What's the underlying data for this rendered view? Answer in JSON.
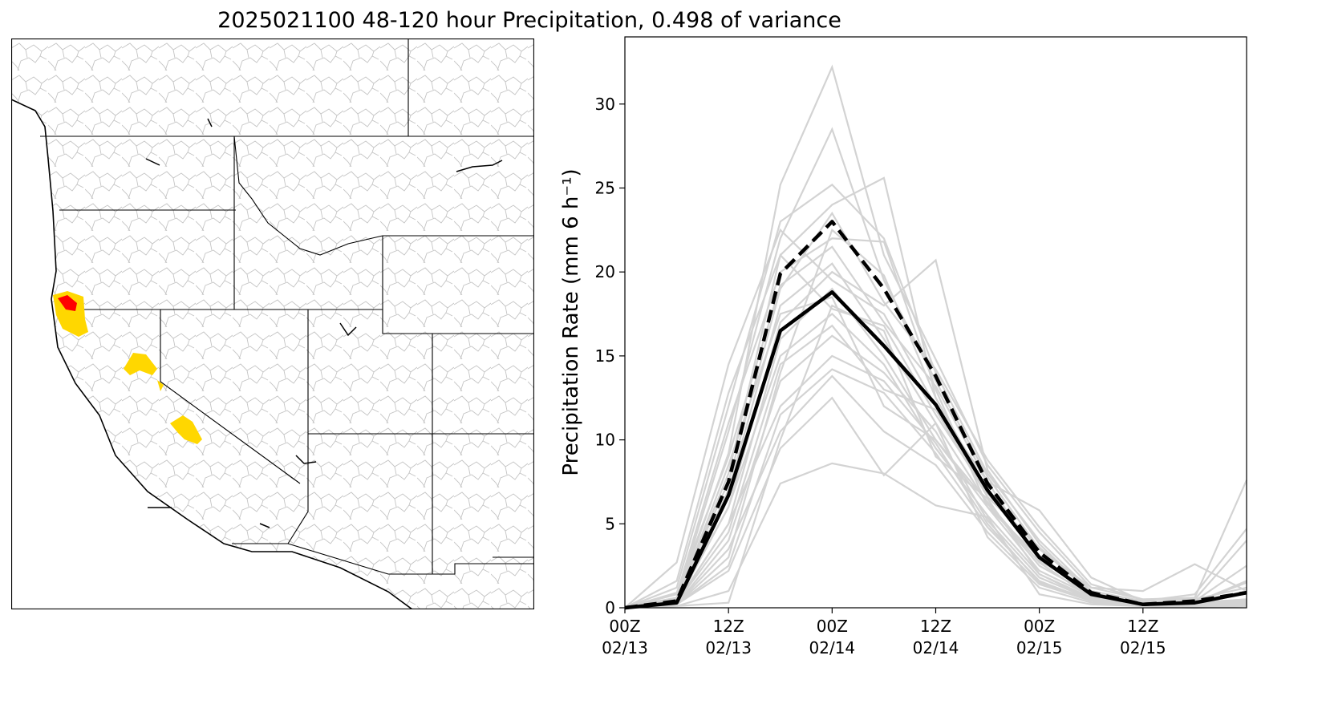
{
  "title": "2025021100 48-120 hour Precipitation, 0.498 of variance",
  "colors": {
    "basin_outline": "#bdbdbd",
    "state_line": "#000000",
    "highlight_high": "#ff0000",
    "highlight_mid": "#ffd700",
    "member": "#d3d3d3",
    "mean": "#000000"
  },
  "chart_data": {
    "type": "line",
    "title": "",
    "xlabel": "",
    "ylabel": "Precipitation Rate (mm 6 h⁻¹)",
    "ylim": [
      0,
      34
    ],
    "yticks": [
      0,
      5,
      10,
      15,
      20,
      25,
      30
    ],
    "x": [
      "02/13 00Z",
      "02/13 06Z",
      "02/13 12Z",
      "02/13 18Z",
      "02/14 00Z",
      "02/14 06Z",
      "02/14 12Z",
      "02/14 18Z",
      "02/15 00Z",
      "02/15 06Z",
      "02/15 12Z",
      "02/15 18Z",
      "02/16 00Z"
    ],
    "xticks": [
      {
        "line1": "00Z",
        "line2": "02/13"
      },
      {
        "line1": "12Z",
        "line2": "02/13"
      },
      {
        "line1": "00Z",
        "line2": "02/14"
      },
      {
        "line1": "12Z",
        "line2": "02/14"
      },
      {
        "line1": "00Z",
        "line2": "02/15"
      },
      {
        "line1": "12Z",
        "line2": "02/15"
      }
    ],
    "series": [
      {
        "style": "solid-bold",
        "values": [
          0.0,
          0.3,
          6.7,
          16.5,
          18.8,
          15.6,
          12.1,
          7.0,
          3.0,
          0.8,
          0.2,
          0.3,
          0.9
        ]
      },
      {
        "style": "dashed-bold",
        "values": [
          0.0,
          0.4,
          7.5,
          19.9,
          23.0,
          19.0,
          13.8,
          7.4,
          3.3,
          0.9,
          0.2,
          0.4,
          0.9
        ]
      },
      {
        "style": "member",
        "values": [
          0.0,
          0.5,
          9.2,
          25.2,
          32.2,
          21.0,
          14.8,
          8.5,
          4.5,
          1.2,
          0.5,
          0.6,
          7.6
        ]
      },
      {
        "style": "member",
        "values": [
          0.0,
          0.6,
          10.5,
          22.0,
          28.5,
          19.5,
          13.5,
          7.8,
          3.5,
          1.0,
          0.4,
          0.8,
          4.7
        ]
      },
      {
        "style": "member",
        "values": [
          0.0,
          1.2,
          12.0,
          23.0,
          25.2,
          22.0,
          14.0,
          8.0,
          4.0,
          1.0,
          0.3,
          0.5,
          4.0
        ]
      },
      {
        "style": "member",
        "values": [
          0.0,
          0.4,
          8.0,
          21.0,
          24.0,
          25.6,
          12.5,
          7.0,
          3.0,
          0.9,
          0.3,
          0.4,
          2.5
        ]
      },
      {
        "style": "member",
        "values": [
          0.0,
          0.8,
          11.0,
          20.0,
          22.0,
          21.8,
          13.0,
          6.0,
          3.0,
          0.7,
          0.2,
          0.3,
          1.6
        ]
      },
      {
        "style": "member",
        "values": [
          0.0,
          0.3,
          6.0,
          17.0,
          20.0,
          18.0,
          20.7,
          8.2,
          3.8,
          0.8,
          0.3,
          0.3,
          1.5
        ]
      },
      {
        "style": "member",
        "values": [
          0.0,
          2.7,
          14.5,
          22.5,
          19.5,
          17.5,
          12.0,
          7.5,
          5.8,
          1.8,
          0.4,
          0.3,
          1.0
        ]
      },
      {
        "style": "member",
        "values": [
          0.0,
          1.6,
          12.8,
          21.0,
          17.8,
          16.8,
          11.5,
          6.8,
          3.5,
          1.2,
          1.0,
          2.6,
          1.0
        ]
      },
      {
        "style": "member",
        "values": [
          0.0,
          0.9,
          9.0,
          19.2,
          21.5,
          17.0,
          13.2,
          7.5,
          2.8,
          1.0,
          0.3,
          0.3,
          0.5
        ]
      },
      {
        "style": "member",
        "values": [
          0.0,
          0.5,
          7.0,
          18.0,
          20.5,
          16.0,
          11.0,
          6.2,
          2.5,
          0.8,
          0.2,
          0.2,
          0.5
        ]
      },
      {
        "style": "member",
        "values": [
          0.0,
          0.3,
          5.0,
          16.0,
          19.0,
          15.0,
          10.0,
          6.0,
          2.2,
          0.7,
          0.1,
          0.2,
          0.4
        ]
      },
      {
        "style": "member",
        "values": [
          0.0,
          0.4,
          6.0,
          15.0,
          17.5,
          14.5,
          9.5,
          5.5,
          2.0,
          0.6,
          0.2,
          0.2,
          0.3
        ]
      },
      {
        "style": "member",
        "values": [
          0.0,
          0.2,
          4.0,
          13.5,
          16.2,
          14.0,
          10.5,
          5.2,
          1.8,
          0.5,
          0.2,
          0.1,
          0.3
        ]
      },
      {
        "style": "member",
        "values": [
          0.0,
          0.3,
          5.0,
          12.0,
          15.0,
          13.5,
          9.8,
          5.0,
          1.5,
          0.5,
          0.1,
          0.1,
          0.2
        ]
      },
      {
        "style": "member",
        "values": [
          0.0,
          0.2,
          3.5,
          10.5,
          13.8,
          10.5,
          8.5,
          4.5,
          1.4,
          0.4,
          0.1,
          0.1,
          0.2
        ]
      },
      {
        "style": "member",
        "values": [
          0.0,
          0.2,
          2.2,
          9.5,
          12.5,
          7.9,
          11.0,
          4.2,
          1.2,
          0.3,
          0.1,
          0.1,
          0.2
        ]
      },
      {
        "style": "member",
        "values": [
          0.0,
          0.1,
          1.0,
          7.4,
          8.6,
          8.0,
          6.1,
          5.4,
          0.8,
          0.2,
          0.1,
          0.0,
          0.1
        ]
      },
      {
        "style": "member",
        "values": [
          0.0,
          0.1,
          0.3,
          10.0,
          18.0,
          16.5,
          9.0,
          6.5,
          2.0,
          0.5,
          0.1,
          0.1,
          0.2
        ]
      },
      {
        "style": "member",
        "values": [
          0.0,
          0.2,
          3.0,
          14.0,
          22.5,
          19.8,
          12.5,
          7.0,
          3.1,
          0.9,
          0.2,
          0.2,
          0.3
        ]
      },
      {
        "style": "member",
        "values": [
          0.0,
          0.4,
          8.5,
          17.5,
          18.5,
          12.0,
          10.0,
          6.3,
          2.7,
          0.6,
          0.2,
          0.2,
          0.4
        ]
      },
      {
        "style": "member",
        "values": [
          0.0,
          0.3,
          4.5,
          14.5,
          16.8,
          13.0,
          11.8,
          6.6,
          3.6,
          0.9,
          0.3,
          0.3,
          0.5
        ]
      },
      {
        "style": "member",
        "values": [
          0.0,
          0.6,
          7.5,
          19.0,
          23.5,
          18.2,
          14.2,
          8.8,
          4.8,
          1.4,
          0.5,
          0.5,
          1.2
        ]
      },
      {
        "style": "member",
        "values": [
          0.0,
          0.2,
          2.5,
          11.5,
          14.2,
          12.8,
          9.2,
          4.8,
          1.6,
          0.4,
          0.1,
          0.1,
          0.2
        ]
      }
    ]
  }
}
